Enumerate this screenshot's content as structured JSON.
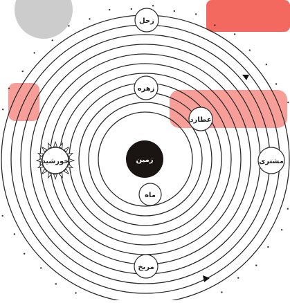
{
  "diagram": {
    "center": {
      "label": "زمین",
      "color": "#1a1412"
    },
    "bodies": [
      {
        "key": "moon",
        "label": "ماه"
      },
      {
        "key": "mercury",
        "label": "عطارد"
      },
      {
        "key": "venus",
        "label": "زهره"
      },
      {
        "key": "sun",
        "label": "خورشید"
      },
      {
        "key": "mars",
        "label": "مریخ"
      },
      {
        "key": "jupiter",
        "label": "مشتری"
      },
      {
        "key": "saturn",
        "label": "زحل"
      }
    ],
    "colors": {
      "orbit": "#2a2a2a",
      "watermark": "#ef3b2d",
      "watermark_gray": "#c7c7c7",
      "star": "#333333"
    }
  }
}
